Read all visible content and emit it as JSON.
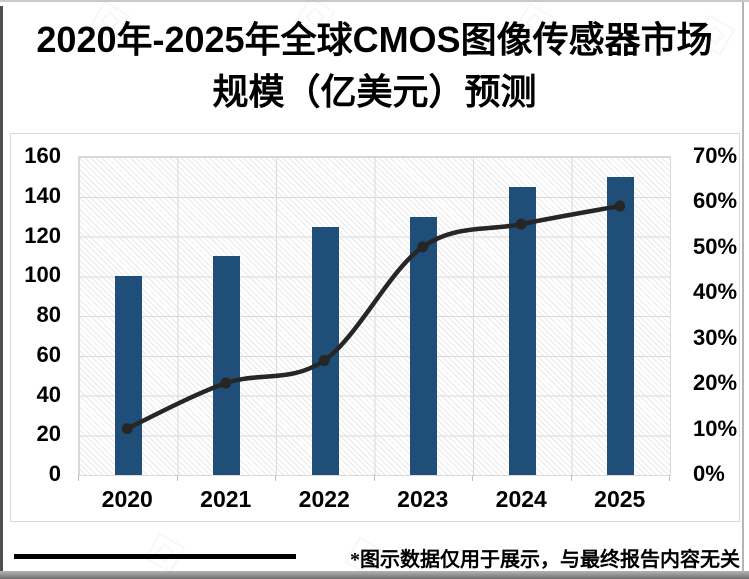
{
  "title": {
    "line1": "2020年-2025年全球CMOS图像传感器市场",
    "line2": "规模（亿美元）预测"
  },
  "footnote": "*图示数据仅用于展示，与最终报告内容无关",
  "colors": {
    "bar": "#1F4E79",
    "line": "#262626",
    "marker": "#262626",
    "grid": "#d9d9d9",
    "axis_text": "#000000"
  },
  "chart_data": {
    "type": "bar",
    "combo": "bar+line",
    "categories": [
      "2020",
      "2021",
      "2022",
      "2023",
      "2024",
      "2025"
    ],
    "series": [
      {
        "name": "bar-series",
        "type": "bar",
        "axis": "left",
        "values": [
          100,
          110,
          125,
          130,
          145,
          150
        ]
      },
      {
        "name": "line-series",
        "type": "line",
        "axis": "right",
        "values": [
          10,
          20,
          25,
          50,
          55,
          59
        ]
      }
    ],
    "left_axis": {
      "min": 0,
      "max": 160,
      "step": 20,
      "tick_labels": [
        "0",
        "20",
        "40",
        "60",
        "80",
        "100",
        "120",
        "140",
        "160"
      ]
    },
    "right_axis": {
      "min": 0,
      "max": 70,
      "step": 10,
      "unit": "%",
      "tick_labels": [
        "0%",
        "10%",
        "20%",
        "30%",
        "40%",
        "50%",
        "60%",
        "70%"
      ]
    },
    "grid": true,
    "legend": "none",
    "plot_background": "diagonal-hatch",
    "line_style": "smooth-with-round-markers"
  }
}
